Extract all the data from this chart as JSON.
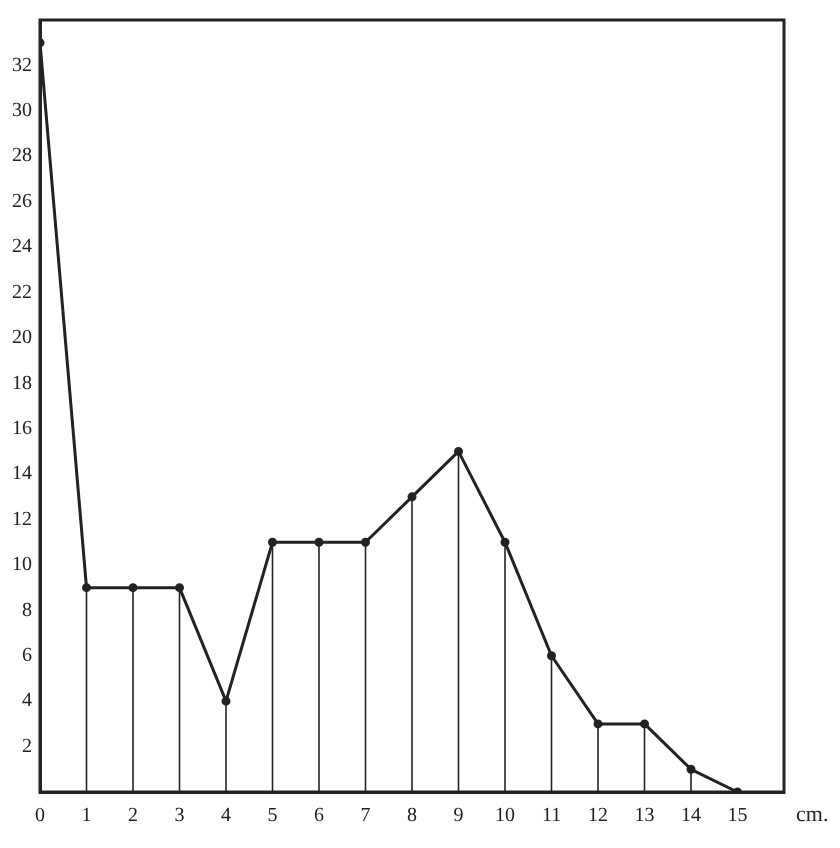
{
  "chart_data": {
    "type": "line",
    "xlabel": "cm.",
    "x": [
      0,
      1,
      2,
      3,
      4,
      5,
      6,
      7,
      8,
      9,
      10,
      11,
      12,
      13,
      14,
      15
    ],
    "series": [
      {
        "color": "#222222",
        "values": [
          33,
          9,
          9,
          9,
          4,
          11,
          11,
          11,
          13,
          15,
          11,
          6,
          3,
          3,
          1,
          0
        ]
      },
      {
        "type": "lollipop",
        "color": "#222222",
        "values": [
          33,
          9,
          9,
          9,
          4,
          11,
          11,
          11,
          13,
          15,
          11,
          6,
          3,
          3,
          1,
          0
        ]
      }
    ],
    "xlim": [
      0,
      16
    ],
    "xticks": [
      0,
      1,
      2,
      3,
      4,
      5,
      6,
      7,
      8,
      9,
      10,
      11,
      12,
      13,
      14,
      15
    ],
    "ylim": [
      0,
      34
    ],
    "yticks": [
      2,
      4,
      6,
      8,
      10,
      12,
      14,
      16,
      18,
      20,
      22,
      24,
      26,
      28,
      30,
      32
    ],
    "grid": false,
    "legend": false,
    "line_style": "solid"
  }
}
